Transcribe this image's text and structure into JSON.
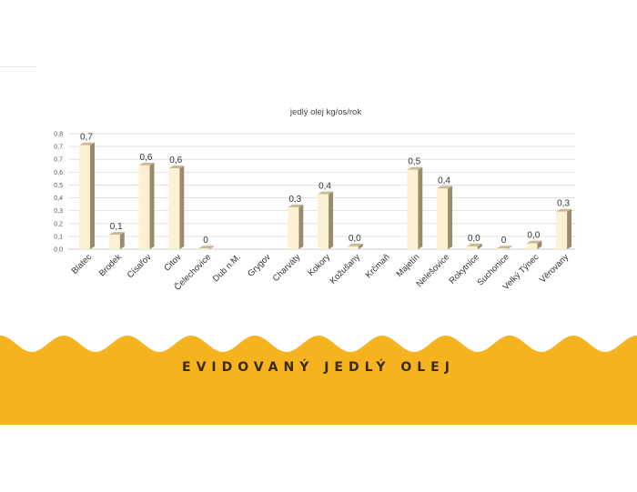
{
  "banner": {
    "title": "EVIDOVANÝ JEDLÝ OLEJ",
    "color": "#f5b31f",
    "text_color": "#3a2a10"
  },
  "chart_data": {
    "type": "bar",
    "title": "jedlý olej kg/os/rok",
    "xlabel": "",
    "ylabel": "",
    "ylim": [
      0,
      0.8
    ],
    "yticks": [
      "0,0",
      "0,1",
      "0,2",
      "0,3",
      "0,4",
      "0,5",
      "0,6",
      "0,7",
      "0,7",
      "0,8"
    ],
    "grid": true,
    "legend": "none",
    "categories": [
      "Blatec",
      "Brodek",
      "Císařov",
      "Citov",
      "Čelechovice",
      "Dub n.M.",
      "Grygov",
      "Charváty",
      "Kokory",
      "Kožušany",
      "Krčmaň",
      "Majetín",
      "Nelešovice",
      "Rokytnice",
      "Suchonice",
      "Velký Týnec",
      "Věrovany"
    ],
    "values": [
      0.72,
      0.1,
      0.58,
      0.56,
      0.005,
      null,
      null,
      0.29,
      0.38,
      0.02,
      null,
      0.55,
      0.42,
      0.02,
      0.005,
      0.04,
      0.26
    ],
    "data_labels": [
      "0,7",
      "0,1",
      "0,6",
      "0,6",
      "0",
      "",
      "",
      "0,3",
      "0,4",
      "0,0",
      "",
      "0,5",
      "0,4",
      "0,0",
      "0",
      "0,0",
      "0,3"
    ],
    "bar_front_color": "#fdf1d3",
    "bar_side_color": "#9a8b6f"
  }
}
